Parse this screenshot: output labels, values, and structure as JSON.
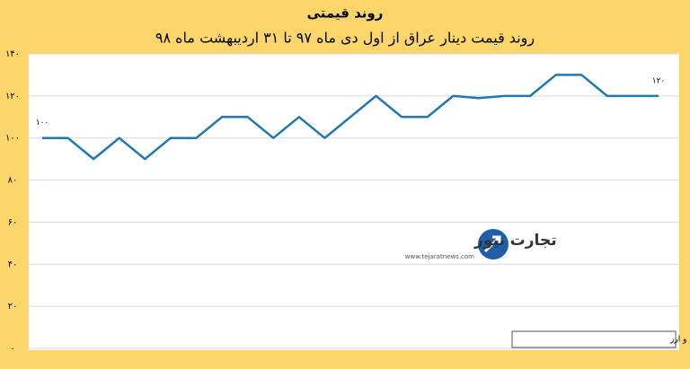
{
  "chart_data": {
    "type": "line",
    "title": "روند قیمتی",
    "subtitle": "روند قیمت دینار عراق از اول دی ماه ۹۷ تا ۳۱ اردیبهشت ماه ۹۸",
    "values": [
      100,
      100,
      90,
      100,
      90,
      100,
      100,
      110,
      110,
      100,
      110,
      100,
      110,
      120,
      110,
      110,
      120,
      119,
      120,
      120,
      130,
      130,
      120,
      120,
      120
    ],
    "value_labels": [
      "۱۰۰",
      null,
      null,
      null,
      null,
      null,
      null,
      null,
      null,
      null,
      null,
      null,
      null,
      null,
      null,
      null,
      null,
      null,
      null,
      null,
      null,
      null,
      null,
      null,
      "۱۲۰"
    ],
    "color": "#1f77b4",
    "ylim": [
      0,
      140
    ],
    "yticks": [
      {
        "value": 0,
        "label": "۰"
      },
      {
        "value": 20,
        "label": "۲۰"
      },
      {
        "value": 40,
        "label": "۴۰"
      },
      {
        "value": 60,
        "label": "۶۰"
      },
      {
        "value": 80,
        "label": "۸۰"
      },
      {
        "value": 100,
        "label": "۱۰۰"
      },
      {
        "value": 120,
        "label": "۱۲۰"
      },
      {
        "value": 140,
        "label": "۱۴۰"
      }
    ],
    "grid": true,
    "source": "منبع: شبکه اطلاع‌رسانی طلا، سکه و ارز",
    "watermark": {
      "name": "تجارت نیوز",
      "url": "www.tejaratnews.com"
    }
  }
}
